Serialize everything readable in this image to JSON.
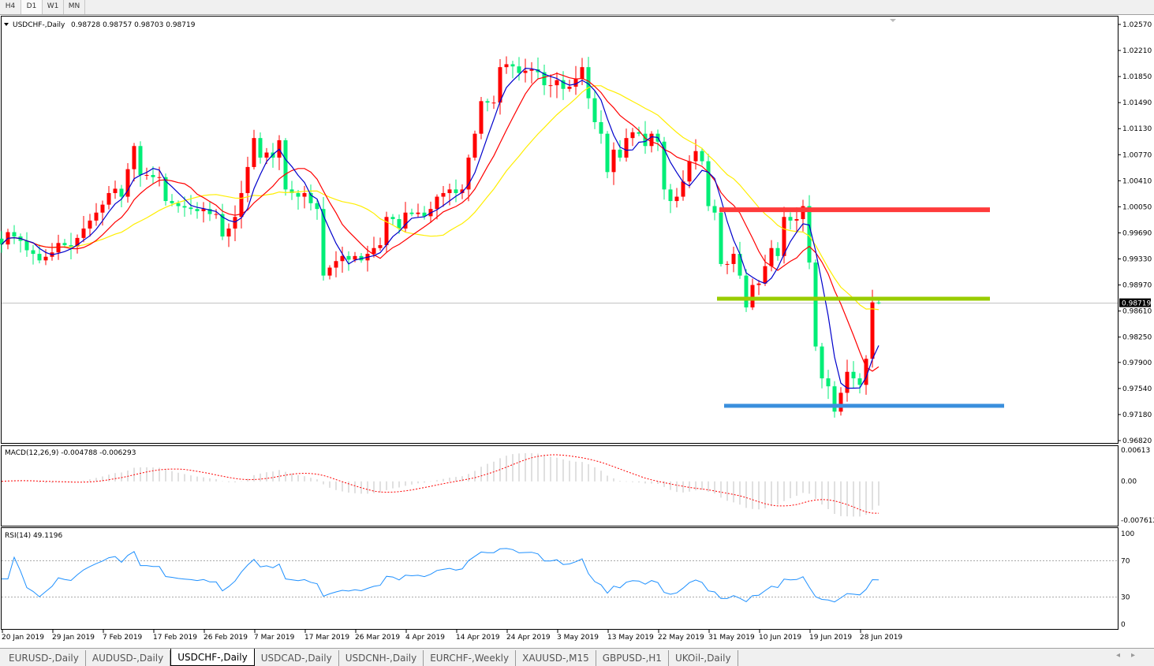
{
  "toolbar": {
    "timeframes": [
      "H4",
      "D1",
      "W1",
      "MN"
    ],
    "active": "D1"
  },
  "chart_header": {
    "symbol": "USDCHF-,Daily",
    "ohlc": "0.98728 0.98757 0.98703 0.98719"
  },
  "macd_label": "MACD(12,26,9) -0.004788 -0.006293",
  "rsi_label": "RSI(14) 49.1196",
  "tabs": [
    "EURUSD-,Daily",
    "AUDUSD-,Daily",
    "USDCHF-,Daily",
    "USDCAD-,Daily",
    "USDCNH-,Daily",
    "EURCHF-,Weekly",
    "XAUUSD-,M15",
    "GBPUSD-,H1",
    "UKOil-,Daily"
  ],
  "active_tab": "USDCHF-,Daily",
  "colors": {
    "bull": "#ff0000",
    "bear": "#00ee77",
    "ma_fast": "#0000cc",
    "ma_mid": "#ff0000",
    "ma_slow": "#ffee00",
    "resistance": "#ff3b3b",
    "support_mid": "#99cc00",
    "support_low": "#3a8fdd"
  },
  "chart_data": {
    "type": "candlestick",
    "symbol": "USDCHF",
    "timeframe": "Daily",
    "last_bar": {
      "open": 0.98728,
      "high": 0.98757,
      "low": 0.98703,
      "close": 0.98719
    },
    "closes": [
      0.9953,
      0.997,
      0.9964,
      0.9958,
      0.9945,
      0.994,
      0.9931,
      0.9936,
      0.9942,
      0.9955,
      0.9952,
      0.995,
      0.9962,
      0.9975,
      0.9986,
      0.9997,
      1.0008,
      1.0024,
      1.003,
      1.0019,
      1.0057,
      1.0089,
      1.0049,
      1.0049,
      1.0046,
      1.0046,
      1.0013,
      1.001,
      1.0006,
      1.0004,
      1.0002,
      0.9999,
      1.0002,
      0.9995,
      0.9995,
      0.9964,
      0.9975,
      0.9991,
      1.0024,
      1.006,
      1.01,
      1.0073,
      1.008,
      1.0073,
      1.0097,
      1.0029,
      1.0024,
      1.0019,
      1.0024,
      1.001,
      1.0002,
      0.991,
      0.9921,
      0.993,
      0.9937,
      0.9932,
      0.9937,
      0.9931,
      0.994,
      0.9948,
      0.9952,
      0.9991,
      0.9988,
      0.9975,
      0.9997,
      0.9995,
      0.9997,
      0.9992,
      1.0002,
      1.0019,
      1.0024,
      1.0029,
      1.0024,
      1.0029,
      1.0073,
      1.0106,
      1.0151,
      1.0149,
      1.0149,
      1.0198,
      1.0202,
      1.0199,
      1.019,
      1.0193,
      1.0195,
      1.0191,
      1.0173,
      1.0173,
      1.018,
      1.0168,
      1.0171,
      1.0182,
      1.0198,
      1.0155,
      1.0122,
      1.0106,
      1.0053,
      1.0084,
      1.0073,
      1.01,
      1.0108,
      1.0106,
      1.0089,
      1.0106,
      1.0095,
      1.0029,
      1.0013,
      1.0019,
      1.004,
      1.0068,
      1.0082,
      1.0068,
      1.0006,
      0.9997,
      0.9926,
      0.9926,
      0.994,
      0.991,
      0.9866,
      0.9897,
      0.9899,
      0.9923,
      0.9948,
      0.9937,
      0.9991,
      0.9986,
      0.9988,
      1.0006,
      0.9928,
      0.9812,
      0.9768,
      0.9757,
      0.9722,
      0.9748,
      0.9777,
      0.9768,
      0.9759,
      0.9795,
      0.9873,
      0.98719
    ],
    "price_ticks": [
      "1.02570",
      "1.02210",
      "1.01850",
      "1.01490",
      "1.01130",
      "1.00770",
      "1.00410",
      "1.00050",
      "0.99690",
      "0.99330",
      "0.98970",
      "0.98610",
      "0.98250",
      "0.97900",
      "0.97540",
      "0.97180",
      "0.96820"
    ],
    "price_range": [
      0.9682,
      1.0257
    ],
    "current_price": "0.98719",
    "horizontal_lines": [
      {
        "price": 1.0001,
        "color": "#ff3b3b"
      },
      {
        "price": 0.9878,
        "color": "#99cc00"
      },
      {
        "price": 0.973,
        "color": "#3a8fdd"
      }
    ],
    "date_ticks": [
      "20 Jan 2019",
      "29 Jan 2019",
      "7 Feb 2019",
      "17 Feb 2019",
      "26 Feb 2019",
      "7 Mar 2019",
      "17 Mar 2019",
      "26 Mar 2019",
      "4 Apr 2019",
      "14 Apr 2019",
      "24 Apr 2019",
      "3 May 2019",
      "13 May 2019",
      "22 May 2019",
      "31 May 2019",
      "10 Jun 2019",
      "19 Jun 2019",
      "28 Jun 2019"
    ],
    "moving_averages": [
      "fast",
      "mid",
      "slow"
    ],
    "macd": {
      "params": "12,26,9",
      "ticks": [
        "0.00613",
        "0.00",
        "-0.007612"
      ],
      "range": [
        -0.007612,
        0.00613
      ]
    },
    "rsi": {
      "period": 14,
      "ticks": [
        "100",
        "70",
        "30",
        "0"
      ],
      "levels": [
        70,
        30
      ]
    }
  }
}
